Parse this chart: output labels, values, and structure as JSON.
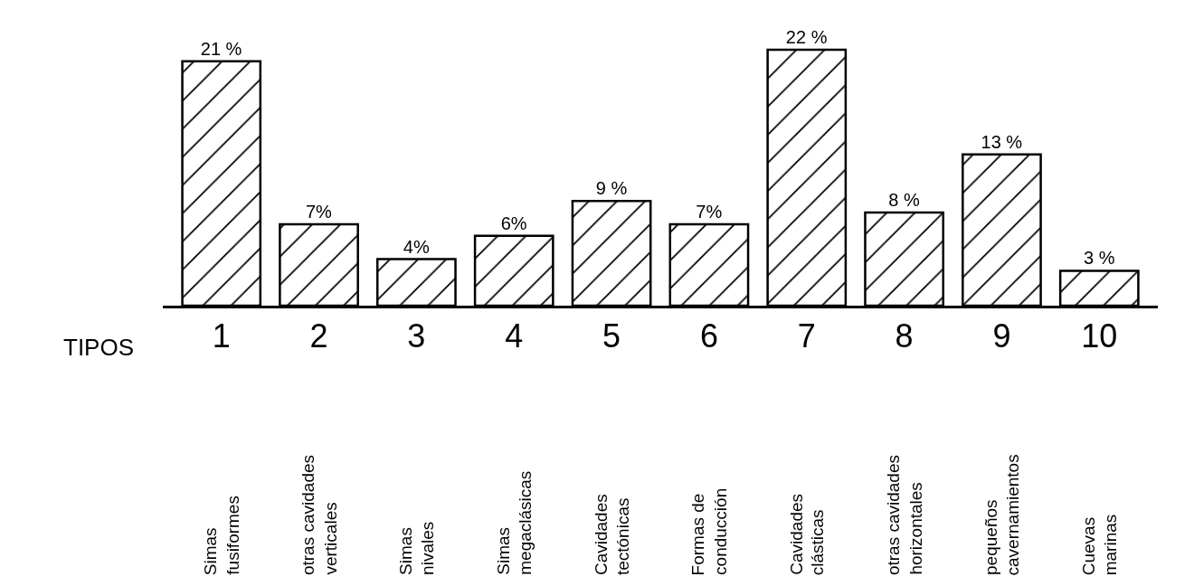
{
  "chart_data": {
    "type": "bar",
    "xlabel": "TIPOS",
    "categories": [
      "1\nSimas\nfusiformes",
      "2\notras cavidades\nverticales",
      "3\nSimas\nnivales",
      "4\nSimas\nmegaclásicas",
      "5\nCavidades\ntectónicas",
      "6\nFormas de\nconducción",
      "7\nCavidades\nclásticas",
      "8\notras cavidades\nhorizontales",
      "9\npequeños\ncavernamientos",
      "10\nCuevas\nmarinas"
    ],
    "values": [
      21,
      7,
      4,
      6,
      9,
      7,
      22,
      8,
      13,
      3
    ],
    "value_labels": [
      "21 %",
      "7%",
      "4%",
      "6%",
      "9 %",
      "7%",
      "22 %",
      "8 %",
      "13 %",
      "3 %"
    ],
    "color": "#000000"
  }
}
